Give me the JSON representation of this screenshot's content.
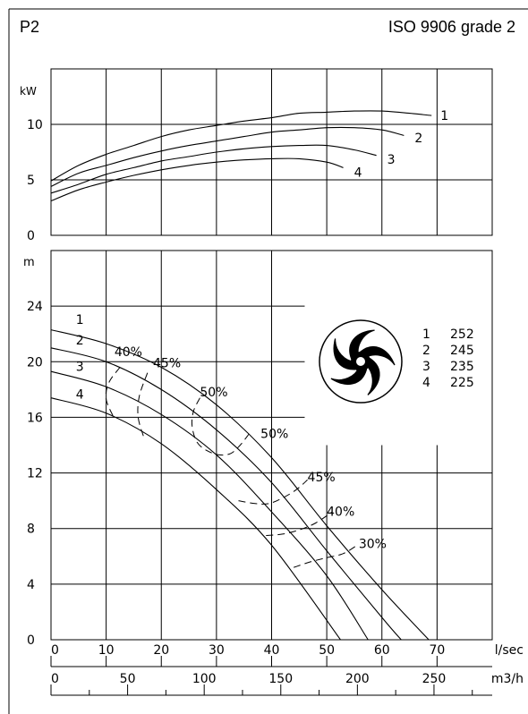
{
  "header": {
    "left": "P2",
    "right": "ISO 9906 grade 2"
  },
  "chart_data": [
    {
      "type": "line",
      "ylabel": "kW",
      "xlabel": "l/sec",
      "xlim": [
        0,
        80
      ],
      "ylim": [
        0,
        15
      ],
      "yticks": [
        0,
        5,
        10
      ],
      "grid": true,
      "series": [
        {
          "name": "1",
          "x": [
            0,
            5,
            10,
            15,
            20,
            25,
            30,
            35,
            40,
            45,
            50,
            55,
            60,
            65,
            69
          ],
          "y": [
            4.9,
            6.3,
            7.3,
            8.1,
            8.9,
            9.5,
            9.9,
            10.3,
            10.6,
            11.0,
            11.1,
            11.2,
            11.2,
            11.0,
            10.8
          ]
        },
        {
          "name": "2",
          "x": [
            0,
            5,
            10,
            15,
            20,
            25,
            30,
            35,
            40,
            45,
            50,
            55,
            60,
            64
          ],
          "y": [
            4.4,
            5.6,
            6.3,
            7.0,
            7.6,
            8.1,
            8.5,
            8.9,
            9.3,
            9.5,
            9.7,
            9.7,
            9.5,
            9.0
          ]
        },
        {
          "name": "3",
          "x": [
            0,
            5,
            10,
            15,
            20,
            25,
            30,
            35,
            40,
            45,
            50,
            55,
            59
          ],
          "y": [
            3.8,
            4.6,
            5.5,
            6.1,
            6.7,
            7.1,
            7.5,
            7.8,
            8.0,
            8.1,
            8.1,
            7.7,
            7.2
          ]
        },
        {
          "name": "4",
          "x": [
            0,
            5,
            10,
            15,
            20,
            25,
            30,
            35,
            40,
            45,
            50,
            53
          ],
          "y": [
            3.1,
            4.1,
            4.8,
            5.4,
            5.9,
            6.3,
            6.6,
            6.8,
            6.9,
            6.9,
            6.6,
            6.1
          ]
        }
      ]
    },
    {
      "type": "line",
      "ylabel": "m",
      "xlabel": "l/sec",
      "x2label": "m3/h",
      "xlim": [
        0,
        80
      ],
      "ylim": [
        0,
        28
      ],
      "yticks": [
        0,
        4,
        8,
        12,
        16,
        20,
        24
      ],
      "xticks": [
        0,
        10,
        20,
        30,
        40,
        50,
        60,
        70
      ],
      "x2ticks": [
        0,
        50,
        100,
        150,
        200,
        250
      ],
      "grid": true,
      "series": [
        {
          "name": "1",
          "x": [
            0,
            10,
            20,
            30,
            40,
            50,
            60,
            68.5
          ],
          "y": [
            22.3,
            21.3,
            19.6,
            16.9,
            13.1,
            8.2,
            3.6,
            0
          ]
        },
        {
          "name": "2",
          "x": [
            0,
            10,
            20,
            30,
            40,
            50,
            60,
            63.5
          ],
          "y": [
            21.0,
            20.0,
            18.0,
            15.1,
            11.3,
            6.4,
            1.6,
            0
          ]
        },
        {
          "name": "3",
          "x": [
            0,
            10,
            20,
            30,
            40,
            50,
            57.5
          ],
          "y": [
            19.3,
            18.2,
            16.2,
            13.3,
            9.2,
            4.6,
            0
          ]
        },
        {
          "name": "4",
          "x": [
            0,
            10,
            20,
            30,
            40,
            52.5
          ],
          "y": [
            17.4,
            16.3,
            14.1,
            10.8,
            6.8,
            0
          ]
        }
      ],
      "efficiency_lines": [
        {
          "label": "40%",
          "x": [
            12.5,
            10.5,
            10.0,
            11.5
          ],
          "y": [
            19.6,
            18.5,
            17.3,
            15.9
          ]
        },
        {
          "label": "45%",
          "x": [
            17.5,
            16.0,
            15.8,
            16.8
          ],
          "y": [
            19.2,
            17.5,
            16.0,
            14.6
          ]
        },
        {
          "label": "50%",
          "x": [
            27.0,
            25.8,
            25.6,
            26.5,
            28.3,
            30.5,
            32.6,
            34.3,
            35.9
          ],
          "y": [
            17.4,
            16.4,
            15.3,
            14.2,
            13.6,
            13.3,
            13.4,
            14.0,
            14.8
          ]
        },
        {
          "label": "45%",
          "x": [
            34.0,
            37.0,
            39.5,
            42.0,
            44.5,
            46.5
          ],
          "y": [
            10.0,
            9.8,
            9.8,
            10.2,
            10.8,
            11.5
          ]
        },
        {
          "label": "40%",
          "x": [
            39.0,
            42.0,
            45.0,
            48.0,
            51.0
          ],
          "y": [
            7.5,
            7.6,
            7.9,
            8.4,
            9.2
          ]
        },
        {
          "label": "30%",
          "x": [
            44.0,
            47.0,
            50.0,
            53.0,
            55.5
          ],
          "y": [
            5.2,
            5.6,
            5.9,
            6.2,
            6.8
          ]
        }
      ],
      "legend": [
        {
          "label": "1",
          "value": "252"
        },
        {
          "label": "2",
          "value": "245"
        },
        {
          "label": "3",
          "value": "235"
        },
        {
          "label": "4",
          "value": "225"
        }
      ]
    }
  ]
}
